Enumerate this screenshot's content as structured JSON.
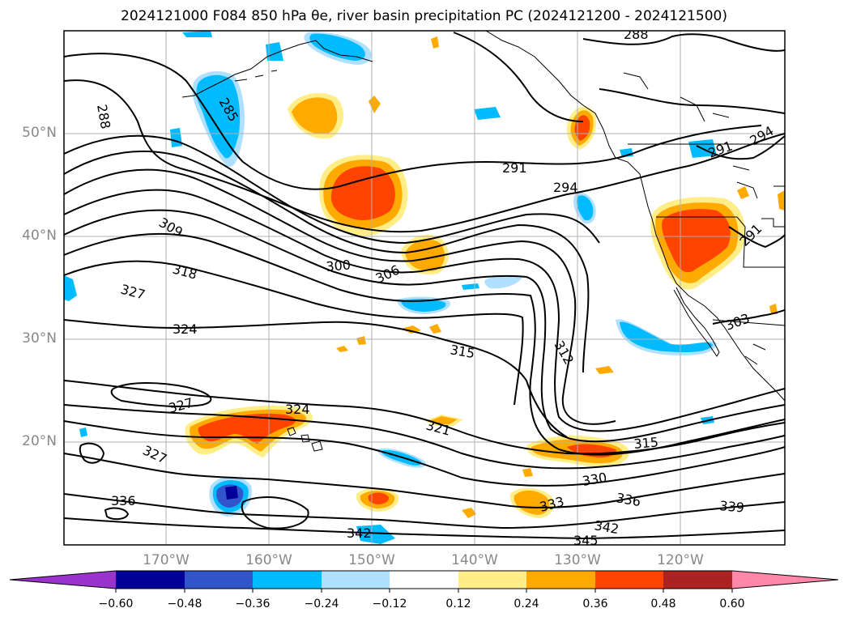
{
  "title": "2024121000 F084 850 hPa θe, river basin precipitation PC (2024121200 - 2024121500)",
  "lat_labels": [
    "50°N",
    "40°N",
    "30°N",
    "20°N"
  ],
  "lon_labels": [
    "170°W",
    "160°W",
    "150°W",
    "140°W",
    "130°W",
    "120°W"
  ],
  "colorbar": {
    "tick_labels": [
      "−0.60",
      "−0.48",
      "−0.36",
      "−0.24",
      "−0.12",
      "0.12",
      "0.24",
      "0.36",
      "0.48",
      "0.60"
    ],
    "colors": [
      "#9933cc",
      "#000099",
      "#3355cc",
      "#00bbff",
      "#b0e0ff",
      "#ffffff",
      "#ffee88",
      "#ffaa00",
      "#ff4400",
      "#aa2222",
      "#ff88aa"
    ]
  },
  "contour_labels": [
    "288",
    "285",
    "288",
    "291",
    "294",
    "291",
    "294",
    "291",
    "309",
    "318",
    "327",
    "324",
    "300",
    "306",
    "315",
    "312",
    "303",
    "327",
    "327",
    "324",
    "321",
    "315",
    "336",
    "330",
    "333",
    "336",
    "339",
    "342",
    "342",
    "345"
  ],
  "colors": {
    "positive_light": "#ffee88",
    "positive_mid": "#ffaa00",
    "positive_strong": "#ff4400",
    "negative_light": "#b0e0ff",
    "negative_mid": "#00bbff",
    "negative_strong": "#3355cc",
    "negative_core": "#000099"
  }
}
